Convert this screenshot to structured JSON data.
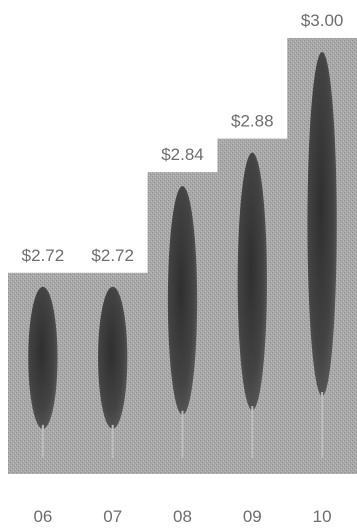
{
  "chart_data": {
    "type": "bar",
    "title": "",
    "xlabel": "",
    "ylabel": "",
    "categories": [
      "06",
      "07",
      "08",
      "09",
      "10"
    ],
    "values": [
      2.72,
      2.72,
      2.84,
      2.88,
      3.0
    ],
    "value_labels": [
      "$2.72",
      "$2.72",
      "$2.84",
      "$2.88",
      "$3.00"
    ],
    "ylim": [
      2.48,
      3.0
    ],
    "grid": false,
    "legend": "none",
    "colors": {
      "bar": "#a9a9a9",
      "bar_texture": "#8c8c8c",
      "leaf": "#4b4b4b",
      "leaf_dark": "#2f2f2f",
      "stem": "#bdbdbd",
      "label": "#6e6e6e"
    }
  }
}
